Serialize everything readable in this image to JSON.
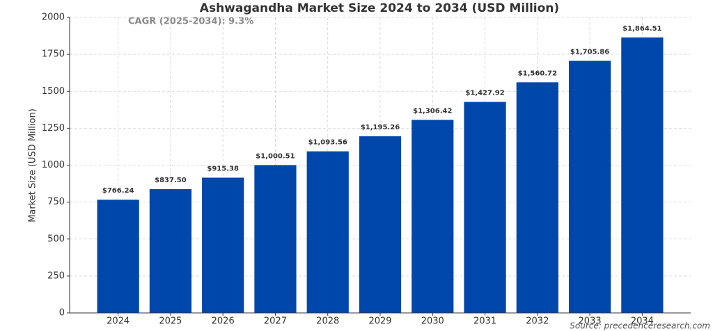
{
  "chart_data": {
    "type": "bar",
    "title": "Ashwagandha Market Size 2024 to 2034 (USD Million)",
    "annotation": "CAGR (2025-2034): 9.3%",
    "source": "Source: precedenceresearch.com",
    "y_label": "Market Size (USD Million)",
    "categories": [
      "2024",
      "2025",
      "2026",
      "2027",
      "2028",
      "2029",
      "2030",
      "2031",
      "2032",
      "2033",
      "2034"
    ],
    "values": [
      766.24,
      837.5,
      915.38,
      1000.51,
      1093.56,
      1195.26,
      1306.42,
      1427.92,
      1560.72,
      1705.86,
      1864.51
    ],
    "value_labels": [
      "$766.24",
      "$837.50",
      "$915.38",
      "$1,000.51",
      "$1,093.56",
      "$1,195.26",
      "$1,306.42",
      "$1,427.92",
      "$1,560.72",
      "$1,705.86",
      "$1,864.51"
    ],
    "color": "#0047ab",
    "ylim": [
      0,
      2000
    ],
    "yticks": [
      0,
      250,
      500,
      750,
      1000,
      1250,
      1500,
      1750,
      2000
    ],
    "grid": true
  }
}
